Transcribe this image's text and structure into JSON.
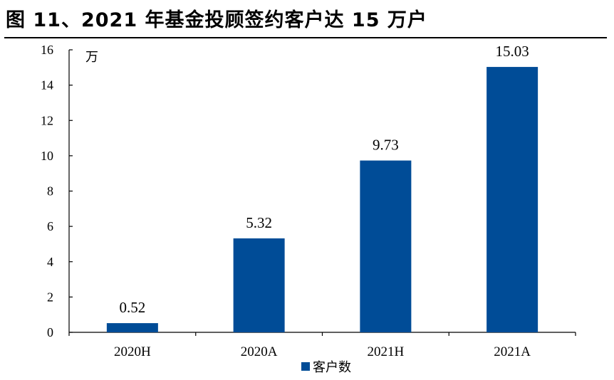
{
  "title": "图 11、2021 年基金投顾签约客户达 15 万户",
  "colors": {
    "bar": "#004c97",
    "axis": "#000000"
  },
  "chart_data": {
    "type": "bar",
    "title": "图 11、2021 年基金投顾签约客户达 15 万户",
    "unit": "万",
    "categories": [
      "2020H",
      "2020A",
      "2021H",
      "2021A"
    ],
    "series": [
      {
        "name": "客户数",
        "values": [
          0.52,
          5.32,
          9.73,
          15.03
        ]
      }
    ],
    "data_labels": [
      "0.52",
      "5.32",
      "9.73",
      "15.03"
    ],
    "ylim": [
      0,
      16
    ],
    "yticks": [
      0,
      2,
      4,
      6,
      8,
      10,
      12,
      14,
      16
    ],
    "xlabel": "",
    "ylabel": "",
    "grid": false,
    "legend_position": "bottom"
  }
}
